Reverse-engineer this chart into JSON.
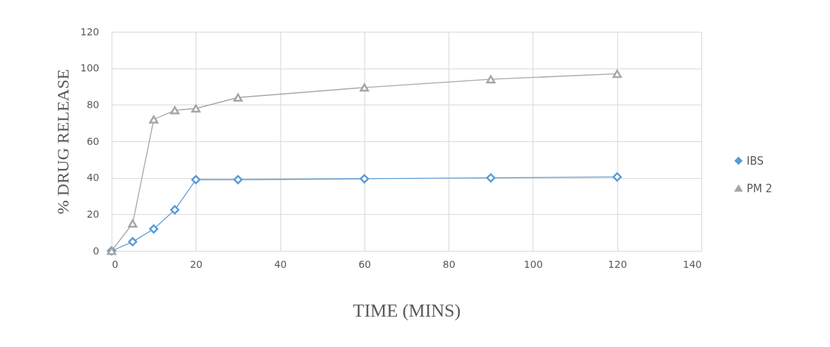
{
  "chart_data": {
    "type": "line",
    "xlabel": "TIME (MINS)",
    "ylabel": "% DRUG  RELEASE",
    "x": [
      0,
      5,
      10,
      15,
      20,
      30,
      60,
      90,
      120
    ],
    "series": [
      {
        "name": "IBS",
        "color": "#5b9bd5",
        "marker": "diamond",
        "values": [
          0,
          5,
          12,
          22.5,
          39,
          39,
          39.5,
          40,
          40.5
        ]
      },
      {
        "name": "PM 2",
        "color": "#a5a5a5",
        "marker": "triangle",
        "values": [
          0,
          15,
          72,
          77,
          78,
          84,
          89.5,
          94,
          97
        ]
      }
    ],
    "xlim": [
      0,
      140
    ],
    "xticks": [
      0,
      20,
      40,
      60,
      80,
      100,
      120,
      140
    ],
    "ylim": [
      0,
      120
    ],
    "yticks": [
      0,
      20,
      40,
      60,
      80,
      100,
      120
    ],
    "grid": true,
    "legend": "right",
    "line_style": "solid"
  }
}
